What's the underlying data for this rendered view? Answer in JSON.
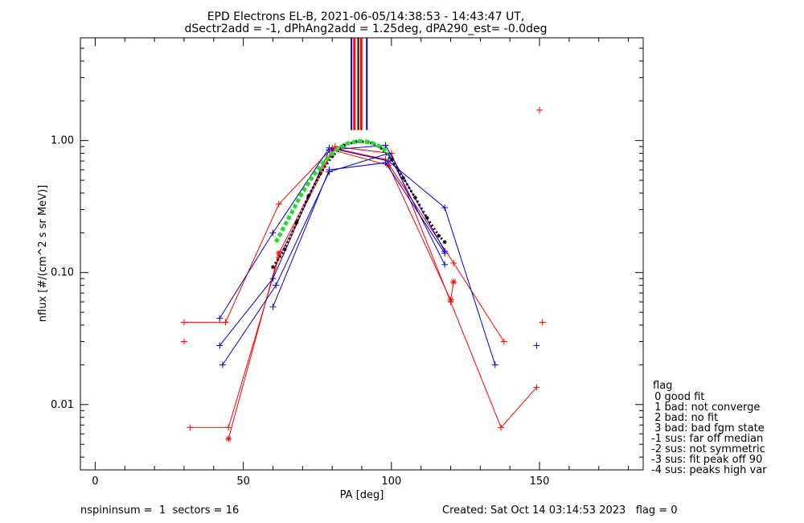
{
  "chart_data": {
    "type": "scatter",
    "title": "EPD Electrons EL-B, 2021-06-05/14:38:53 - 14:43:47 UT,",
    "subtitle": "dSectr2add = -1, dPhAng2add = 1.25deg, dPA290_est=  -0.0deg",
    "xlabel": "PA [deg]",
    "ylabel": "nflux [#/(cm^2 s sr MeV)]",
    "xlim": [
      -5,
      185
    ],
    "ylim": [
      0.0032,
      6.0
    ],
    "yscale": "log",
    "xticks": [
      0,
      50,
      100,
      150
    ],
    "xtick_labels": [
      "0",
      "50",
      "100",
      "150"
    ],
    "yticks": [
      0.01,
      0.1,
      1.0
    ],
    "ytick_labels": [
      "0.01",
      "0.10",
      "1.00"
    ],
    "series": [
      {
        "color": "#ff0000",
        "marker": "+",
        "linestyle": "solid",
        "x": [
          30,
          44,
          62,
          80,
          98,
          121,
          138
        ],
        "y": [
          0.042,
          0.042,
          0.33,
          0.88,
          0.72,
          0.118,
          0.03
        ]
      },
      {
        "color": "#ff0000",
        "marker": "+",
        "linestyle": "solid",
        "x": [
          32,
          45,
          62,
          81,
          100,
          120,
          137,
          149
        ],
        "y": [
          0.0067,
          0.0067,
          0.13,
          0.9,
          0.8,
          0.06,
          0.0067,
          0.0135
        ]
      },
      {
        "color": "#ff0000",
        "marker": "*",
        "linestyle": "solid",
        "x": [
          45,
          62,
          80,
          99,
          120,
          121
        ],
        "y": [
          0.0055,
          0.14,
          0.85,
          0.65,
          0.062,
          0.085
        ]
      },
      {
        "color": "#ff0000",
        "marker": "+",
        "linestyle": "none",
        "x": [
          30,
          150,
          151
        ],
        "y": [
          0.03,
          1.7,
          0.042
        ]
      },
      {
        "color": "#0000cc",
        "marker": "+",
        "linestyle": "solid",
        "x": [
          42,
          60,
          79,
          99,
          118,
          135
        ],
        "y": [
          0.045,
          0.2,
          0.88,
          0.7,
          0.31,
          0.02
        ]
      },
      {
        "color": "#0000cc",
        "marker": "+",
        "linestyle": "solid",
        "x": [
          42,
          60,
          79,
          98,
          118
        ],
        "y": [
          0.028,
          0.09,
          0.85,
          0.92,
          0.145
        ]
      },
      {
        "color": "#0000cc",
        "marker": "+",
        "linestyle": "solid",
        "x": [
          43,
          61,
          79,
          99,
          118
        ],
        "y": [
          0.02,
          0.08,
          0.58,
          0.8,
          0.115
        ]
      },
      {
        "color": "#0000cc",
        "marker": "+",
        "linestyle": "solid",
        "x": [
          60,
          79,
          98,
          118
        ],
        "y": [
          0.055,
          0.6,
          0.68,
          0.14
        ]
      },
      {
        "color": "#0000cc",
        "marker": "+",
        "linestyle": "none",
        "x": [
          149
        ],
        "y": [
          0.028
        ]
      },
      {
        "color": "#000000",
        "marker": "*",
        "linestyle": "dotted",
        "x": [
          60,
          64,
          68,
          72,
          76,
          80,
          84,
          88,
          92,
          96,
          100,
          104,
          108,
          112,
          116,
          118
        ],
        "y": [
          0.11,
          0.15,
          0.24,
          0.38,
          0.56,
          0.76,
          0.92,
          0.98,
          0.98,
          0.9,
          0.72,
          0.52,
          0.37,
          0.26,
          0.19,
          0.17
        ]
      },
      {
        "color": "#22dd22",
        "marker": "",
        "linestyle": "dashed",
        "x": [
          61,
          65,
          69,
          73,
          77,
          81,
          85,
          89,
          93,
          97,
          99
        ],
        "y": [
          0.17,
          0.25,
          0.37,
          0.52,
          0.68,
          0.84,
          0.95,
          0.99,
          0.97,
          0.88,
          0.8
        ]
      }
    ],
    "vlines": [
      {
        "x": 86.5,
        "color": "#0000cc"
      },
      {
        "x": 87.5,
        "color": "#ff0000"
      },
      {
        "x": 88.8,
        "color": "#000000"
      },
      {
        "x": 89.8,
        "color": "#ff0000"
      },
      {
        "x": 91.7,
        "color": "#0000cc"
      }
    ],
    "vline_range": [
      1.2,
      6.0
    ],
    "legend": {
      "title": "flag",
      "entries": [
        " 0 good fit",
        " 1 bad: not converge",
        " 2 bad: no fit",
        " 3 bad: bad fgm state",
        "-1 sus: far off median",
        "-2 sus: not symmetric",
        "-3 sus: fit peak off 90",
        "-4 sus: peaks high var"
      ]
    },
    "footer": {
      "left": "nspininsum =  1  sectors = 16",
      "right": "Created: Sat Oct 14 03:14:53 2023   flag = 0"
    }
  }
}
